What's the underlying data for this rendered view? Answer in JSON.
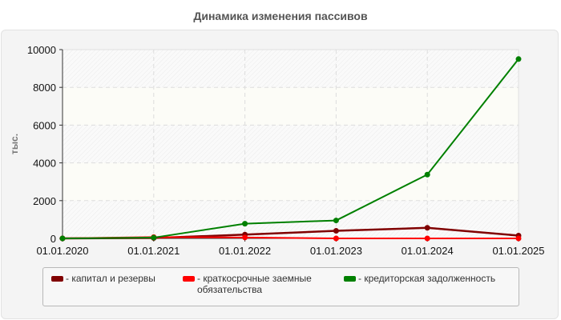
{
  "title": "Динамика изменения пассивов",
  "colors": {
    "capital": "#800000",
    "short_loans": "#ff0000",
    "payables": "#008000",
    "grid": "#dddddd",
    "panel_bg": "#f4f4f4"
  },
  "chart_data": {
    "type": "line",
    "title": "Динамика изменения пассивов",
    "xlabel": "",
    "ylabel": "тыс.",
    "categories": [
      "01.01.2020",
      "01.01.2021",
      "01.01.2022",
      "01.01.2023",
      "01.01.2024",
      "01.01.2025"
    ],
    "yticks": [
      0,
      2000,
      4000,
      6000,
      8000,
      10000
    ],
    "ylim": [
      0,
      10000
    ],
    "grid": true,
    "legend_position": "bottom",
    "series": [
      {
        "name": "капитал и резервы",
        "color": "#800000",
        "values": [
          0,
          20,
          200,
          400,
          560,
          150
        ]
      },
      {
        "name": "краткосрочные заемные обязательства",
        "color": "#ff0000",
        "values": [
          0,
          70,
          50,
          0,
          0,
          0
        ]
      },
      {
        "name": "кредиторская задолженность",
        "color": "#008000",
        "values": [
          0,
          40,
          780,
          950,
          3380,
          9500
        ]
      }
    ]
  },
  "legend": {
    "items": [
      {
        "label": "- капитал и резервы"
      },
      {
        "label": "- краткосрочные заемные обязательства"
      },
      {
        "label": "- кредиторская задолженность"
      }
    ]
  }
}
